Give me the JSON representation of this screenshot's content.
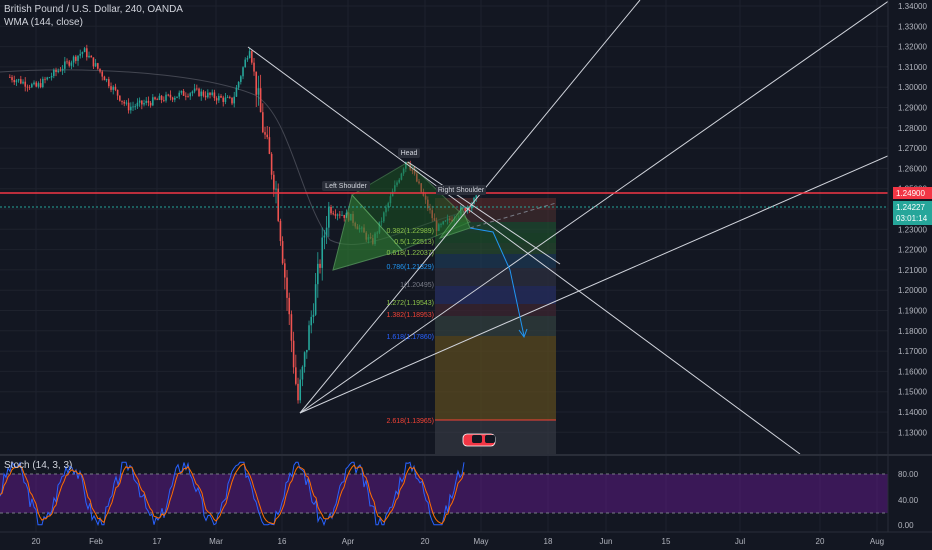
{
  "header": {
    "symbol_title": "British Pound / U.S. Dollar, 240, OANDA",
    "indicator": "WMA (144, close)",
    "oscillator": "Stoch (14, 3, 3)"
  },
  "price_axis": {
    "ticks": [
      "1.34000",
      "1.33000",
      "1.32000",
      "1.31000",
      "1.30000",
      "1.29000",
      "1.28000",
      "1.27000",
      "1.26000",
      "1.25000",
      "1.24000",
      "1.23000",
      "1.22000",
      "1.21000",
      "1.20000",
      "1.19000",
      "1.18000",
      "1.17000",
      "1.16000",
      "1.15000",
      "1.14000",
      "1.13000"
    ],
    "red_label": "1.24900",
    "last_label": "1.24227",
    "countdown": "03:01:14"
  },
  "stoch_axis": {
    "ticks": [
      "80.00",
      "40.00",
      "0.00"
    ]
  },
  "time_axis": {
    "ticks": [
      "20",
      "Feb",
      "17",
      "Mar",
      "16",
      "Apr",
      "20",
      "May",
      "18",
      "Jun",
      "15",
      "Jul",
      "20",
      "Aug"
    ]
  },
  "pattern_labels": {
    "head": "Head",
    "left_shoulder": "Left Shoulder",
    "right_shoulder": "Right Shoulder"
  },
  "fib_labels": [
    {
      "text": "0.382(1.22989)",
      "color": "#8bc34a"
    },
    {
      "text": "0.5(1.22513)",
      "color": "#8bc34a"
    },
    {
      "text": "0.618(1.22037)",
      "color": "#8bc34a"
    },
    {
      "text": "0.786(1.21329)",
      "color": "#2196f3"
    },
    {
      "text": "1(1.20495)",
      "color": "#787b86"
    },
    {
      "text": "1.272(1.19543)",
      "color": "#8bc34a"
    },
    {
      "text": "1.382(1.18953)",
      "color": "#f44336"
    },
    {
      "text": "1.618(1.17860)",
      "color": "#2962ff"
    },
    {
      "text": "2.618(1.13965)",
      "color": "#f44336"
    }
  ],
  "colors": {
    "background": "#131722",
    "up_candle": "#26a69a",
    "down_candle": "#ef5350",
    "red_line": "#f23645",
    "last_price": "#26a69a",
    "stoch_band": "#6a1b9a",
    "triangle_fill": "#2e7d32"
  },
  "chart_data": {
    "type": "candlestick",
    "title": "British Pound / U.S. Dollar, 240, OANDA",
    "ylim": [
      1.125,
      1.345
    ],
    "horizontal_line": 1.249,
    "last_price": 1.24227,
    "price_path": [
      {
        "date": "2020-01-14",
        "price": 1.305
      },
      {
        "date": "2020-01-20",
        "price": 1.3
      },
      {
        "date": "2020-01-31",
        "price": 1.318
      },
      {
        "date": "2020-02-10",
        "price": 1.29
      },
      {
        "date": "2020-02-25",
        "price": 1.298
      },
      {
        "date": "2020-03-05",
        "price": 1.293
      },
      {
        "date": "2020-03-09",
        "price": 1.32
      },
      {
        "date": "2020-03-12",
        "price": 1.28
      },
      {
        "date": "2020-03-15",
        "price": 1.25
      },
      {
        "date": "2020-03-20",
        "price": 1.145
      },
      {
        "date": "2020-03-27",
        "price": 1.24
      },
      {
        "date": "2020-04-01",
        "price": 1.236
      },
      {
        "date": "2020-04-06",
        "price": 1.223
      },
      {
        "date": "2020-04-14",
        "price": 1.265
      },
      {
        "date": "2020-04-21",
        "price": 1.23
      },
      {
        "date": "2020-04-30",
        "price": 1.245
      }
    ],
    "stoch_range": [
      0,
      100
    ],
    "stoch_levels": [
      20,
      80
    ]
  }
}
